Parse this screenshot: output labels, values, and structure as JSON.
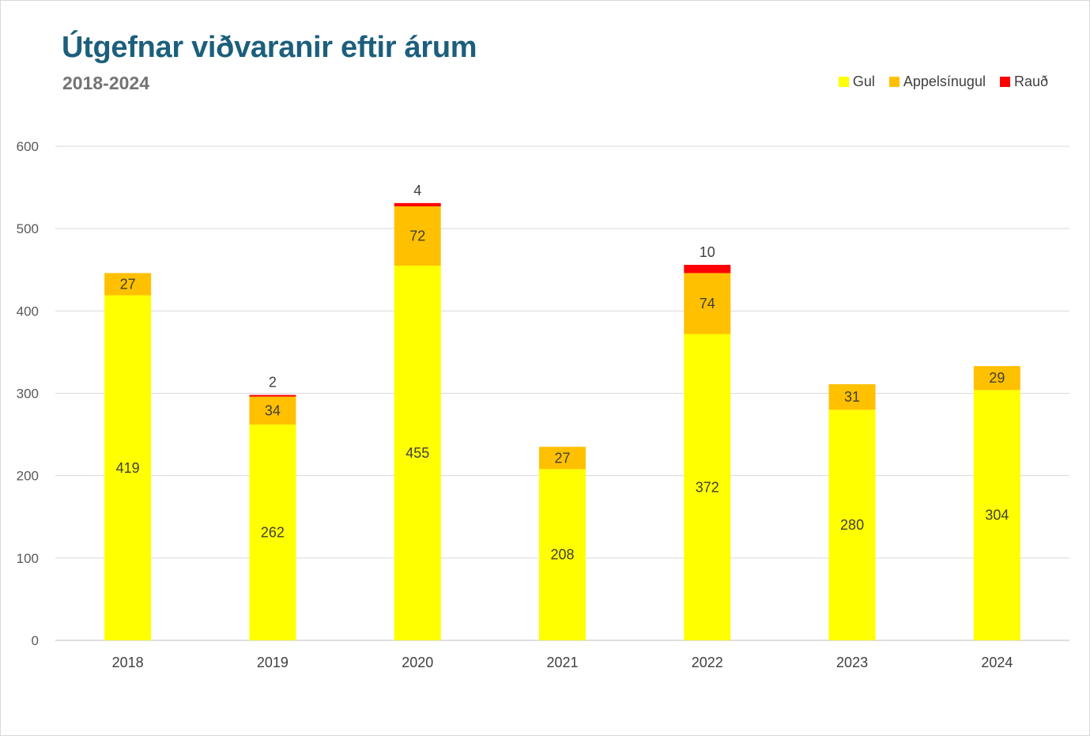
{
  "chart_data": {
    "type": "bar",
    "stacked": true,
    "title": "Útgefnar viðvaranir eftir árum",
    "subtitle": "2018-2024",
    "categories": [
      "2018",
      "2019",
      "2020",
      "2021",
      "2022",
      "2023",
      "2024"
    ],
    "series": [
      {
        "name": "Gul",
        "color": "#ffff00",
        "values": [
          419,
          262,
          455,
          208,
          372,
          280,
          304
        ]
      },
      {
        "name": "Appelsínugul",
        "color": "#ffc000",
        "values": [
          27,
          34,
          72,
          27,
          74,
          31,
          29
        ]
      },
      {
        "name": "Rauð",
        "color": "#ff0000",
        "values": [
          0,
          2,
          4,
          0,
          10,
          0,
          0
        ]
      }
    ],
    "ylim": [
      0,
      600
    ],
    "yticks": [
      0,
      100,
      200,
      300,
      400,
      500,
      600
    ],
    "grid": true,
    "legend_position": "top-right",
    "data_labels": true
  }
}
